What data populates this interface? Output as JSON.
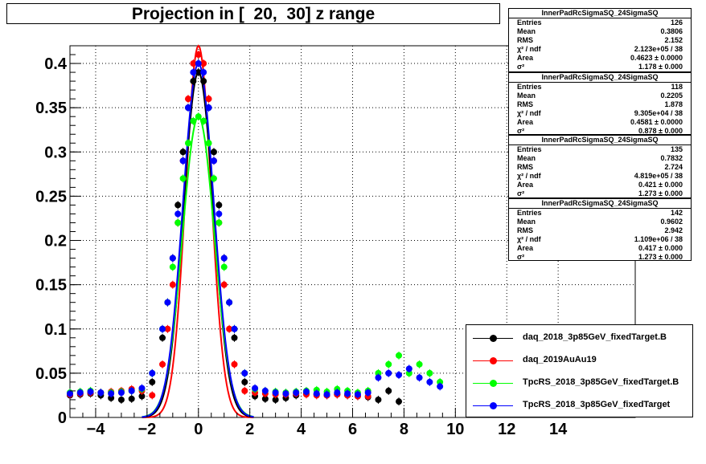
{
  "title": "Projection in [  20,  30] z range",
  "stats_boxes": [
    {
      "name": "InnerPadRcSigmaSQ_24SigmaSQ",
      "entries": "126",
      "mean": "0.3806",
      "rms": "2.152",
      "chi2": "2.123e+05 / 38",
      "area": "0.4623 ± 0.0000",
      "sigma2": "1.178 ± 0.000"
    },
    {
      "name": "InnerPadRcSigmaSQ_24SigmaSQ",
      "entries": "118",
      "mean": "0.2205",
      "rms": "1.878",
      "chi2": "9.305e+04 / 38",
      "area": "0.4581 ± 0.0000",
      "sigma2": "0.878 ± 0.000"
    },
    {
      "name": "InnerPadRcSigmaSQ_24SigmaSQ",
      "entries": "135",
      "mean": "0.7832",
      "rms": "2.724",
      "chi2": "4.819e+05 / 38",
      "area": "0.421 ± 0.000",
      "sigma2": "1.273 ± 0.000"
    },
    {
      "name": "InnerPadRcSigmaSQ_24SigmaSQ",
      "entries": "142",
      "mean": "0.9602",
      "rms": "2.942",
      "chi2": "1.109e+06 / 38",
      "area": "0.417 ± 0.000",
      "sigma2": "1.273 ± 0.000"
    }
  ],
  "stat_labels": {
    "entries": "Entries",
    "mean": "Mean",
    "rms": "RMS",
    "chi2": "χ² / ndf",
    "area": "Area",
    "sigma2": "σ²"
  },
  "legend": [
    {
      "label": "daq_2018_3p85GeV_fixedTarget.B",
      "color": "#000000"
    },
    {
      "label": "daq_2019AuAu19",
      "color": "#ff0000"
    },
    {
      "label": "TpcRS_2018_3p85GeV_fixedTarget.B",
      "color": "#00ff00"
    },
    {
      "label": "TpcRS_2018_3p85GeV_fixedTarget",
      "color": "#0000ff"
    }
  ],
  "chart_data": {
    "type": "scatter",
    "title": "Projection in [  20,  30] z range",
    "xlim": [
      -5,
      17
    ],
    "ylim": [
      0,
      0.42
    ],
    "x_ticks": [
      -4,
      -2,
      0,
      2,
      4,
      6,
      8,
      10,
      12,
      14
    ],
    "x_tick_labels": [
      "−4",
      "−2",
      "0",
      "2",
      "4",
      "6",
      "8",
      "10",
      "12",
      "14"
    ],
    "y_ticks": [
      0,
      0.05,
      0.1,
      0.15,
      0.2,
      0.25,
      0.3,
      0.35,
      0.4
    ],
    "y_tick_labels": [
      "0",
      "0.05",
      "0.1",
      "0.15",
      "0.2",
      "0.25",
      "0.3",
      "0.35",
      "0.4"
    ],
    "grid": true,
    "series": [
      {
        "name": "daq_2018_3p85GeV_fixedTarget.B",
        "color": "#000000",
        "peak": 0.39,
        "sigma": 0.58,
        "base": 0.02,
        "x_end": 8,
        "x": [
          -5.0,
          -4.6,
          -4.2,
          -3.8,
          -3.4,
          -3.0,
          -2.6,
          -2.2,
          -1.8,
          -1.4,
          -1.2,
          -1.0,
          -0.8,
          -0.6,
          -0.4,
          -0.2,
          0.0,
          0.2,
          0.4,
          0.6,
          0.8,
          1.0,
          1.2,
          1.4,
          1.8,
          2.2,
          2.6,
          3.0,
          3.4,
          3.8,
          4.2,
          4.6,
          5.0,
          5.4,
          5.8,
          6.2,
          6.6,
          7.0,
          7.4,
          7.8
        ],
        "y": [
          0.025,
          0.026,
          0.027,
          0.025,
          0.022,
          0.02,
          0.021,
          0.024,
          0.04,
          0.09,
          0.13,
          0.18,
          0.24,
          0.3,
          0.35,
          0.38,
          0.39,
          0.38,
          0.35,
          0.3,
          0.24,
          0.18,
          0.13,
          0.09,
          0.04,
          0.024,
          0.021,
          0.02,
          0.022,
          0.025,
          0.027,
          0.026,
          0.025,
          0.026,
          0.025,
          0.024,
          0.023,
          0.02,
          0.03,
          0.018
        ]
      },
      {
        "name": "daq_2019AuAu19",
        "color": "#ff0000",
        "peak": 0.42,
        "sigma": 0.5,
        "base": 0.025,
        "x_end": 7,
        "x": [
          -5.0,
          -4.6,
          -4.2,
          -3.8,
          -3.4,
          -3.0,
          -2.6,
          -2.2,
          -1.8,
          -1.4,
          -1.2,
          -1.0,
          -0.8,
          -0.6,
          -0.4,
          -0.2,
          0.0,
          0.2,
          0.4,
          0.6,
          0.8,
          1.0,
          1.2,
          1.4,
          1.8,
          2.2,
          2.6,
          3.0,
          3.4,
          3.8,
          4.2,
          4.6,
          5.0,
          5.4,
          5.8,
          6.2,
          6.6
        ],
        "y": [
          0.026,
          0.027,
          0.028,
          0.028,
          0.029,
          0.03,
          0.032,
          0.03,
          0.025,
          0.06,
          0.1,
          0.15,
          0.22,
          0.29,
          0.36,
          0.4,
          0.41,
          0.4,
          0.36,
          0.29,
          0.22,
          0.15,
          0.1,
          0.06,
          0.03,
          0.028,
          0.027,
          0.026,
          0.026,
          0.027,
          0.026,
          0.025,
          0.025,
          0.026,
          0.025,
          0.024,
          0.024
        ]
      },
      {
        "name": "TpcRS_2018_3p85GeV_fixedTarget.B",
        "color": "#00ff00",
        "peak": 0.34,
        "sigma": 0.62,
        "base": 0.027,
        "x_end": 10,
        "x": [
          -5.0,
          -4.6,
          -4.2,
          -3.8,
          -3.4,
          -3.0,
          -2.6,
          -2.2,
          -1.8,
          -1.4,
          -1.2,
          -1.0,
          -0.8,
          -0.6,
          -0.4,
          -0.2,
          0.0,
          0.2,
          0.4,
          0.6,
          0.8,
          1.0,
          1.2,
          1.4,
          1.8,
          2.2,
          2.6,
          3.0,
          3.4,
          3.8,
          4.2,
          4.6,
          5.0,
          5.4,
          5.8,
          6.2,
          6.6,
          7.0,
          7.4,
          7.8,
          8.2,
          8.6,
          9.0,
          9.4
        ],
        "y": [
          0.028,
          0.029,
          0.03,
          0.028,
          0.028,
          0.029,
          0.03,
          0.032,
          0.05,
          0.1,
          0.13,
          0.17,
          0.22,
          0.27,
          0.31,
          0.335,
          0.34,
          0.335,
          0.31,
          0.27,
          0.22,
          0.17,
          0.13,
          0.1,
          0.05,
          0.032,
          0.03,
          0.029,
          0.028,
          0.029,
          0.03,
          0.031,
          0.029,
          0.032,
          0.03,
          0.028,
          0.03,
          0.05,
          0.06,
          0.07,
          0.05,
          0.06,
          0.05,
          0.04
        ]
      },
      {
        "name": "TpcRS_2018_3p85GeV_fixedTarget",
        "color": "#0000ff",
        "peak": 0.4,
        "sigma": 0.6,
        "base": 0.028,
        "x_end": 9.5,
        "x": [
          -5.0,
          -4.6,
          -4.2,
          -3.8,
          -3.4,
          -3.0,
          -2.6,
          -2.2,
          -1.8,
          -1.4,
          -1.2,
          -1.0,
          -0.8,
          -0.6,
          -0.4,
          -0.2,
          0.0,
          0.2,
          0.4,
          0.6,
          0.8,
          1.0,
          1.2,
          1.4,
          1.8,
          2.2,
          2.6,
          3.0,
          3.4,
          3.8,
          4.2,
          4.6,
          5.0,
          5.4,
          5.8,
          6.2,
          6.6,
          7.0,
          7.4,
          7.8,
          8.2,
          8.6,
          9.0,
          9.4
        ],
        "y": [
          0.027,
          0.028,
          0.029,
          0.028,
          0.027,
          0.028,
          0.03,
          0.033,
          0.05,
          0.1,
          0.13,
          0.18,
          0.23,
          0.29,
          0.35,
          0.39,
          0.4,
          0.39,
          0.35,
          0.29,
          0.23,
          0.18,
          0.13,
          0.1,
          0.05,
          0.033,
          0.03,
          0.028,
          0.027,
          0.028,
          0.029,
          0.027,
          0.026,
          0.028,
          0.027,
          0.026,
          0.028,
          0.045,
          0.05,
          0.048,
          0.055,
          0.045,
          0.04,
          0.035
        ]
      }
    ],
    "fits": [
      {
        "color": "#ff0000",
        "peak": 0.42,
        "sigma": 0.5
      },
      {
        "color": "#000000",
        "peak": 0.39,
        "sigma": 0.58
      },
      {
        "color": "#00ff00",
        "peak": 0.34,
        "sigma": 0.62
      },
      {
        "color": "#0000ff",
        "peak": 0.4,
        "sigma": 0.6
      }
    ]
  }
}
